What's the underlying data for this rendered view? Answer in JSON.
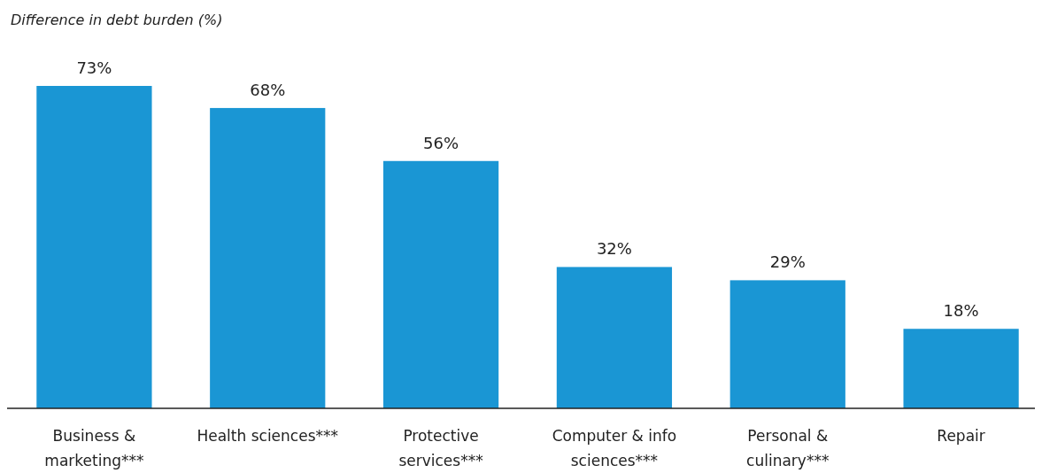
{
  "chart_data": {
    "type": "bar",
    "title": "Difference in debt burden (%)",
    "categories": [
      "Business & marketing***",
      "Health sciences***",
      "Protective services***",
      "Computer & info sciences***",
      "Personal & culinary***",
      "Repair"
    ],
    "values": [
      73,
      68,
      56,
      32,
      29,
      18
    ],
    "value_labels": [
      "73%",
      "68%",
      "56%",
      "32%",
      "29%",
      "18%"
    ],
    "color": "#1a96d4"
  }
}
